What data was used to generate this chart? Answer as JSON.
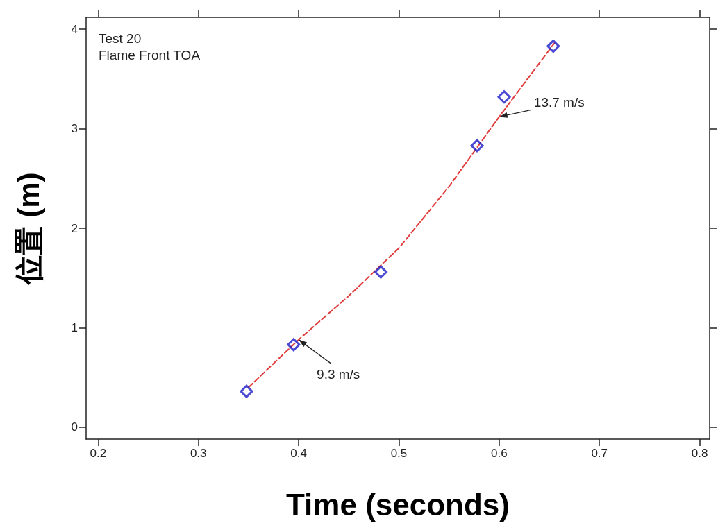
{
  "chart_data": {
    "type": "scatter",
    "xlabel": "Time (seconds)",
    "ylabel": "位置 (m)",
    "xlim": [
      0.188,
      0.81
    ],
    "ylim": [
      -0.12,
      4.12
    ],
    "xticks": [
      0.2,
      0.3,
      0.4,
      0.5,
      0.6,
      0.7,
      0.8
    ],
    "yticks": [
      0,
      1,
      2,
      3,
      4
    ],
    "grid": false,
    "series": [
      {
        "type": "scatter",
        "color": "#1c1cc8",
        "marker": "diamond",
        "x": [
          0.348,
          0.395,
          0.482,
          0.578,
          0.605,
          0.654
        ],
        "values": [
          0.36,
          0.83,
          1.56,
          2.83,
          3.32,
          3.83
        ]
      },
      {
        "type": "line",
        "color": "#e03c3c",
        "marker": "none",
        "line_style": "dashed",
        "x": [
          0.35,
          0.4,
          0.45,
          0.5,
          0.55,
          0.6,
          0.655
        ],
        "values": [
          0.4,
          0.88,
          1.32,
          1.8,
          2.42,
          3.12,
          3.86
        ]
      }
    ],
    "annotations": [
      "Test 20",
      "Flame Front TOA",
      {
        "text": "13.7 m/s",
        "x": 0.6,
        "y": 3.12
      },
      {
        "text": "9.3 m/s",
        "x": 0.4,
        "y": 0.88
      }
    ]
  }
}
